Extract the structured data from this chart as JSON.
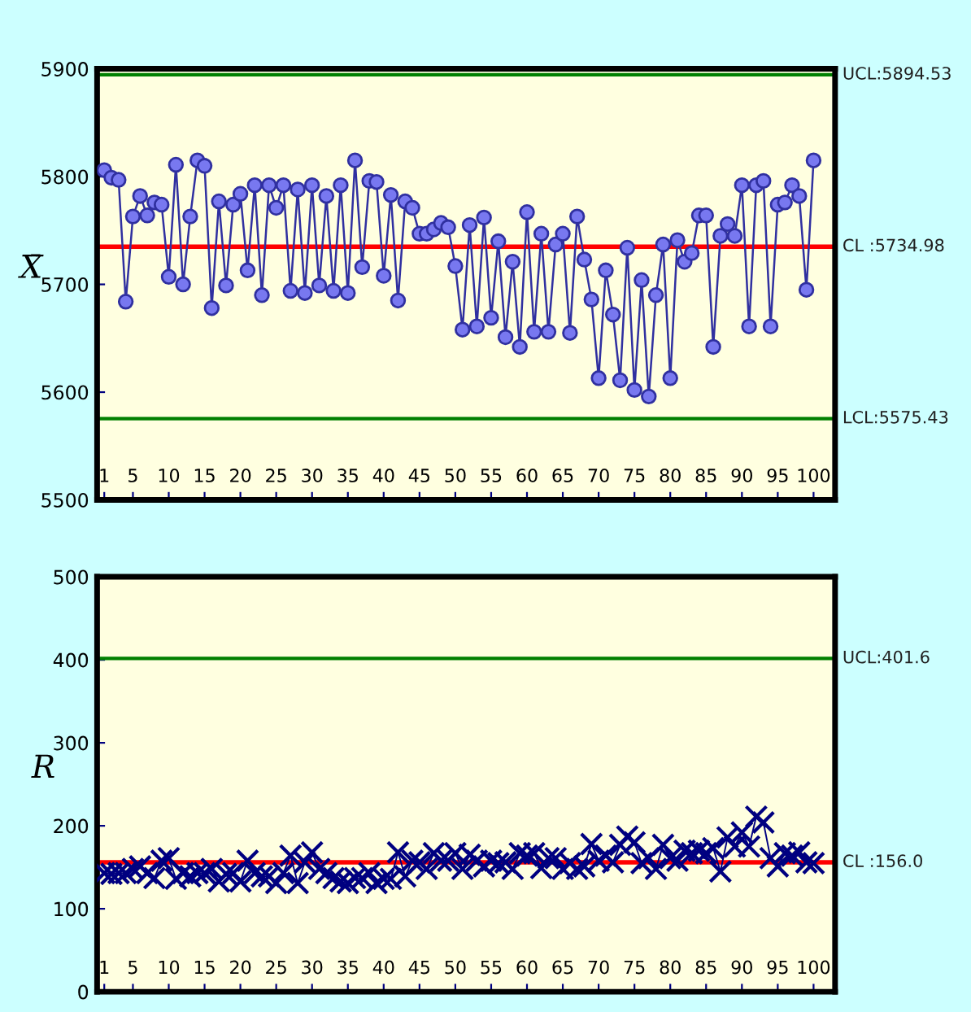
{
  "chart_data": [
    {
      "type": "line",
      "ylabel": "X̄",
      "x": [
        1,
        2,
        3,
        4,
        5,
        6,
        7,
        8,
        9,
        10,
        11,
        12,
        13,
        14,
        15,
        16,
        17,
        18,
        19,
        20,
        21,
        22,
        23,
        24,
        25,
        26,
        27,
        28,
        29,
        30,
        31,
        32,
        33,
        34,
        35,
        36,
        37,
        38,
        39,
        40,
        41,
        42,
        43,
        44,
        45,
        46,
        47,
        48,
        49,
        50,
        51,
        52,
        53,
        54,
        55,
        56,
        57,
        58,
        59,
        60,
        61,
        62,
        63,
        64,
        65,
        66,
        67,
        68,
        69,
        70,
        71,
        72,
        73,
        74,
        75,
        76,
        77,
        78,
        79,
        80,
        81,
        82,
        83,
        84,
        85,
        86,
        87,
        88,
        89,
        90,
        91,
        92,
        93,
        94,
        95,
        96,
        97,
        98,
        99,
        100
      ],
      "series": [
        {
          "color": "#3030a0",
          "marker": "circle",
          "values": [
            5806,
            5799,
            5797,
            5684,
            5763,
            5782,
            5764,
            5776,
            5774,
            5707,
            5811,
            5700,
            5763,
            5815,
            5810,
            5678,
            5777,
            5699,
            5774,
            5784,
            5713,
            5792,
            5690,
            5792,
            5771,
            5792,
            5694,
            5788,
            5692,
            5792,
            5699,
            5782,
            5694,
            5792,
            5692,
            5815,
            5716,
            5796,
            5795,
            5708,
            5783,
            5685,
            5777,
            5771,
            5747,
            5747,
            5751,
            5757,
            5753,
            5717,
            5658,
            5755,
            5661,
            5762,
            5669,
            5740,
            5651,
            5721,
            5642,
            5767,
            5656,
            5747,
            5656,
            5737,
            5747,
            5655,
            5763,
            5723,
            5686,
            5613,
            5713,
            5672,
            5611,
            5734,
            5602,
            5704,
            5596,
            5690,
            5737,
            5613,
            5741,
            5721,
            5729,
            5764,
            5764,
            5642,
            5745,
            5756,
            5745,
            5792,
            5661,
            5792,
            5796,
            5661,
            5774,
            5776,
            5792,
            5782,
            5695,
            5815
          ]
        }
      ],
      "xlim": [
        0,
        103
      ],
      "xticks": [
        1,
        5,
        10,
        15,
        20,
        25,
        30,
        35,
        40,
        45,
        50,
        55,
        60,
        65,
        70,
        75,
        80,
        85,
        90,
        95,
        100
      ],
      "ylim": [
        5500,
        5900
      ],
      "yticks": [
        5500,
        5600,
        5700,
        5800,
        5900
      ],
      "ref_lines": [
        {
          "axis": "y",
          "value": 5894.53,
          "label": "UCL:5894.53",
          "color": "#008000"
        },
        {
          "axis": "y",
          "value": 5734.98,
          "label": "CL :5734.98",
          "color": "#ff0000"
        },
        {
          "axis": "y",
          "value": 5575.43,
          "label": "LCL:5575.43",
          "color": "#008000"
        }
      ]
    },
    {
      "type": "line",
      "ylabel": "R",
      "x": [
        1,
        2,
        3,
        4,
        5,
        6,
        7,
        8,
        9,
        10,
        11,
        12,
        13,
        14,
        15,
        16,
        17,
        18,
        19,
        20,
        21,
        22,
        23,
        24,
        25,
        26,
        27,
        28,
        29,
        30,
        31,
        32,
        33,
        34,
        35,
        36,
        37,
        38,
        39,
        40,
        41,
        42,
        43,
        44,
        45,
        46,
        47,
        48,
        49,
        50,
        51,
        52,
        53,
        54,
        55,
        56,
        57,
        58,
        59,
        60,
        61,
        62,
        63,
        64,
        65,
        66,
        67,
        68,
        69,
        70,
        71,
        72,
        73,
        74,
        75,
        76,
        77,
        78,
        79,
        80,
        81,
        82,
        83,
        84,
        85,
        86,
        87,
        88,
        89,
        90,
        91,
        92,
        93,
        94,
        95,
        96,
        97,
        98,
        99,
        100
      ],
      "series": [
        {
          "color": "#000080",
          "marker": "cross",
          "values": [
            143,
            142,
            143,
            143,
            148,
            151,
            143,
            137,
            158,
            161,
            136,
            143,
            139,
            143,
            143,
            148,
            133,
            142,
            143,
            133,
            158,
            143,
            139,
            139,
            131,
            143,
            164,
            131,
            156,
            168,
            148,
            143,
            137,
            133,
            131,
            137,
            137,
            143,
            131,
            136,
            136,
            168,
            139,
            158,
            156,
            148,
            167,
            158,
            158,
            167,
            148,
            165,
            158,
            151,
            158,
            155,
            156,
            148,
            167,
            164,
            167,
            149,
            161,
            161,
            148,
            155,
            148,
            151,
            178,
            158,
            164,
            156,
            177,
            187,
            180,
            155,
            161,
            148,
            177,
            161,
            158,
            170,
            167,
            170,
            167,
            173,
            145,
            186,
            175,
            192,
            175,
            211,
            204,
            161,
            151,
            167,
            164,
            168,
            156,
            155
          ]
        }
      ],
      "xlim": [
        0,
        103
      ],
      "xticks": [
        1,
        5,
        10,
        15,
        20,
        25,
        30,
        35,
        40,
        45,
        50,
        55,
        60,
        65,
        70,
        75,
        80,
        85,
        90,
        95,
        100
      ],
      "ylim": [
        0,
        500
      ],
      "yticks": [
        0,
        100,
        200,
        300,
        400,
        500
      ],
      "ref_lines": [
        {
          "axis": "y",
          "value": 401.6,
          "label": "UCL:401.6",
          "color": "#008000"
        },
        {
          "axis": "y",
          "value": 156.0,
          "label": "CL :156.0",
          "color": "#ff0000"
        }
      ]
    }
  ]
}
